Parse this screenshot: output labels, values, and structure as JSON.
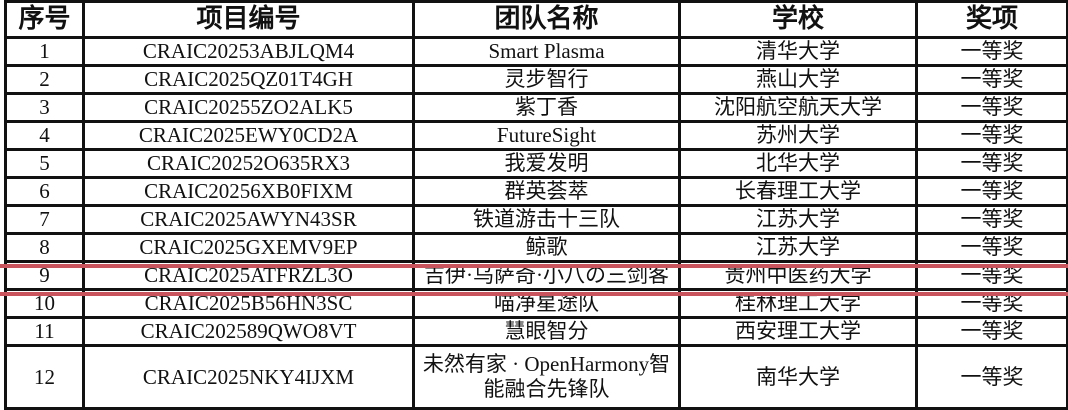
{
  "headers": [
    "序号",
    "项目编号",
    "团队名称",
    "学校",
    "奖项"
  ],
  "rows": [
    [
      "1",
      "CRAIC20253ABJLQM4",
      "Smart Plasma",
      "清华大学",
      "一等奖"
    ],
    [
      "2",
      "CRAIC2025QZ01T4GH",
      "灵步智行",
      "燕山大学",
      "一等奖"
    ],
    [
      "3",
      "CRAIC20255ZO2ALK5",
      "紫丁香",
      "沈阳航空航天大学",
      "一等奖"
    ],
    [
      "4",
      "CRAIC2025EWY0CD2A",
      "FutureSight",
      "苏州大学",
      "一等奖"
    ],
    [
      "5",
      "CRAIC20252O635RX3",
      "我爱发明",
      "北华大学",
      "一等奖"
    ],
    [
      "6",
      "CRAIC20256XB0FIXM",
      "群英荟萃",
      "长春理工大学",
      "一等奖"
    ],
    [
      "7",
      "CRAIC2025AWYN43SR",
      "铁道游击十三队",
      "江苏大学",
      "一等奖"
    ],
    [
      "8",
      "CRAIC2025GXEMV9EP",
      "鲸歌",
      "江苏大学",
      "一等奖"
    ],
    [
      "9",
      "CRAIC2025ATFRZL3O",
      "吉伊·乌萨奇·小八の三剑客",
      "贵州中医药大学",
      "一等奖"
    ],
    [
      "10",
      "CRAIC2025B56HN3SC",
      "喵净星途队",
      "桂林理工大学",
      "一等奖"
    ],
    [
      "11",
      "CRAIC202589QWO8VT",
      "慧眼智分",
      "西安理工大学",
      "一等奖"
    ],
    [
      "12",
      "CRAIC2025NKY4IJXM",
      "未然有家 · OpenHarmony智能融合先锋队",
      "南华大学",
      "一等奖"
    ]
  ],
  "highlight_row": "9",
  "highlight_color": "#c9545d"
}
